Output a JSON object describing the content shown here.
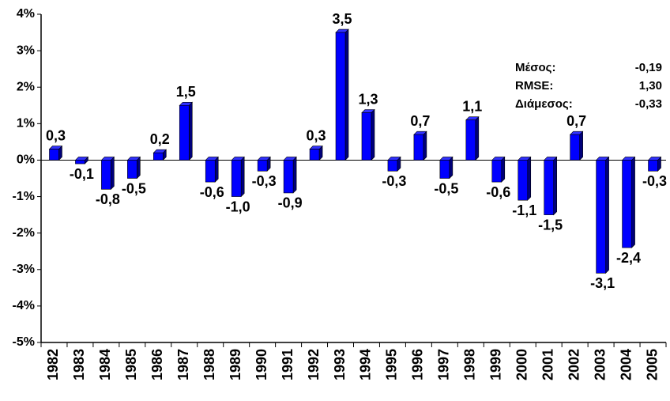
{
  "chart_data": {
    "type": "bar",
    "categories": [
      "1982",
      "1983",
      "1984",
      "1985",
      "1986",
      "1987",
      "1988",
      "1989",
      "1990",
      "1991",
      "1992",
      "1993",
      "1994",
      "1995",
      "1996",
      "1997",
      "1998",
      "1999",
      "2000",
      "2001",
      "2002",
      "2003",
      "2004",
      "2005"
    ],
    "values": [
      0.3,
      -0.1,
      -0.8,
      -0.5,
      0.2,
      1.5,
      -0.6,
      -1.0,
      -0.3,
      -0.9,
      0.3,
      3.5,
      1.3,
      -0.3,
      0.7,
      -0.5,
      1.1,
      -0.6,
      -1.1,
      -1.5,
      0.7,
      -3.1,
      -2.4,
      -0.3
    ],
    "value_labels": [
      "0,3",
      "-0,1",
      "-0,8",
      "-0,5",
      "0,2",
      "1,5",
      "-0,6",
      "-1,0",
      "-0,3",
      "-0,9",
      "0,3",
      "3,5",
      "1,3",
      "-0,3",
      "0,7",
      "-0,5",
      "1,1",
      "-0,6",
      "-1,1",
      "-1,5",
      "0,7",
      "-3,1",
      "-2,4",
      "-0,3"
    ],
    "color": "#0000ff",
    "ylim": [
      -5,
      4
    ],
    "yticks": [
      {
        "value": -5,
        "label": "-5%"
      },
      {
        "value": -4,
        "label": "-4%"
      },
      {
        "value": -3,
        "label": "-3%"
      },
      {
        "value": -2,
        "label": "-2%"
      },
      {
        "value": -1,
        "label": "-1%"
      },
      {
        "value": 0,
        "label": "0%"
      },
      {
        "value": 1,
        "label": "1%"
      },
      {
        "value": 2,
        "label": "2%"
      },
      {
        "value": 3,
        "label": "3%"
      },
      {
        "value": 4,
        "label": "4%"
      }
    ],
    "annotations": [
      [
        "Μέσος:",
        "-0,19"
      ],
      [
        "RMSE:",
        "1,30"
      ],
      [
        "Διάμεσος:",
        "-0,33"
      ]
    ]
  }
}
